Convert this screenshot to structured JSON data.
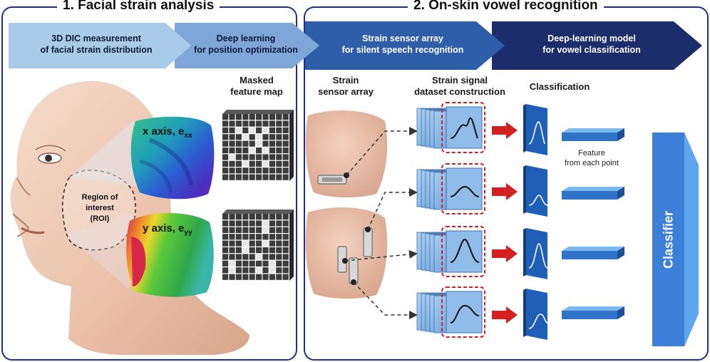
{
  "sections": {
    "facial_strain": "1. Facial strain analysis",
    "vowel_recognition": "2. On-skin vowel recognition"
  },
  "process_arrows": [
    {
      "line1": "3D DIC measurement",
      "line2": "of facial strain distribution"
    },
    {
      "line1": "Deep learning",
      "line2": "for position optimization"
    },
    {
      "line1": "Strain sensor array",
      "line2": "for silent speech recognition"
    },
    {
      "line1": "Deep-learning model",
      "line2": "for vowel classification"
    }
  ],
  "columns": {
    "masked_map": {
      "line1": "Masked",
      "line2": "feature map"
    },
    "sensor_array": {
      "line1": "Strain",
      "line2": "sensor array"
    },
    "dataset": {
      "line1": "Strain signal",
      "line2": "dataset construction"
    },
    "classification": "Classification"
  },
  "face": {
    "roi": {
      "line1": "Region of",
      "line2": "interest",
      "line3": "(ROI)"
    },
    "x_axis_label": "x axis, e",
    "x_axis_sub": "xx",
    "y_axis_label": "y axis, e",
    "y_axis_sub": "yy"
  },
  "feature": {
    "line1": "Feature",
    "line2": "from each point"
  },
  "classifier_label": "Classifier",
  "colors": {
    "section_border": "#1f2f8a",
    "arrow1": "#a9cbe9",
    "arrow2": "#7ea7d8",
    "arrow3": "#2e5ea8",
    "arrow4": "#1b2d6b",
    "signal_red": "#d42020",
    "bar_blue": "#2f73c9"
  }
}
